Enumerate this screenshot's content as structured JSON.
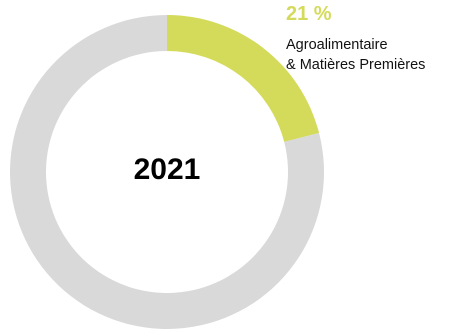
{
  "chart_data": {
    "type": "pie",
    "title": "2021",
    "slices": [
      {
        "name": "Agroalimentaire & Matières Premières",
        "value": 21,
        "value_label": "21 %",
        "label_line1": "Agroalimentaire",
        "label_line2": "& Matières Premières",
        "color": "#d4db5b"
      },
      {
        "name": "",
        "value": 79,
        "color": "#d9d9d9"
      }
    ],
    "start": "top",
    "direction": "clockwise",
    "legend": "none"
  }
}
